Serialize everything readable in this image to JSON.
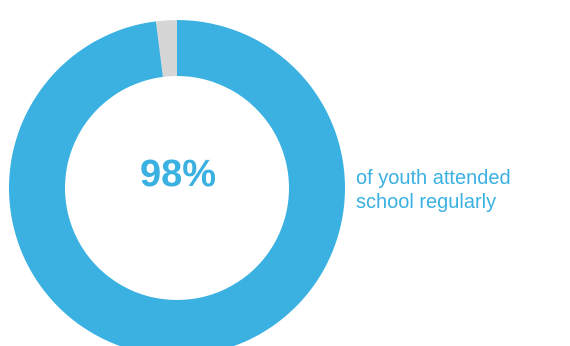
{
  "chart_data": {
    "type": "pie",
    "style": "donut",
    "center_label": "98%",
    "caption_lines": [
      "of youth attended",
      "school regularly"
    ],
    "slices": [
      {
        "value": 98,
        "color": "#3bb1e2"
      },
      {
        "value": 2,
        "color": "#d6d6d6"
      }
    ]
  }
}
